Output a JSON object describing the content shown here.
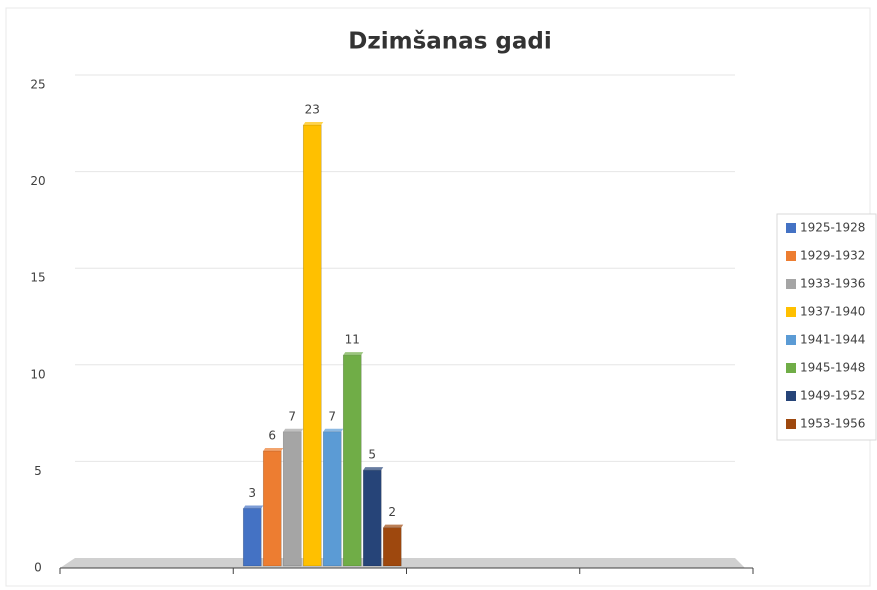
{
  "chart_data": {
    "type": "bar",
    "title": "Dzimšanas gadi",
    "categories": [
      null,
      null,
      null,
      null
    ],
    "series": [
      {
        "name": "1925-1928",
        "color": "#4472c4",
        "values": [
          null,
          3,
          null,
          null
        ]
      },
      {
        "name": "1929-1932",
        "color": "#ed7d31",
        "values": [
          null,
          6,
          null,
          null
        ]
      },
      {
        "name": "1933-1936",
        "color": "#a5a5a5",
        "values": [
          null,
          7,
          null,
          null
        ]
      },
      {
        "name": "1937-1940",
        "color": "#ffc000",
        "values": [
          null,
          23,
          null,
          null
        ]
      },
      {
        "name": "1941-1944",
        "color": "#5b9bd5",
        "values": [
          null,
          7,
          null,
          null
        ]
      },
      {
        "name": "1945-1948",
        "color": "#70ad47",
        "values": [
          null,
          11,
          null,
          null
        ]
      },
      {
        "name": "1949-1952",
        "color": "#264478",
        "values": [
          null,
          5,
          null,
          null
        ]
      },
      {
        "name": "1953-1956",
        "color": "#9e480e",
        "values": [
          null,
          2,
          null,
          null
        ]
      }
    ],
    "ylim": [
      0,
      25
    ],
    "yticks": [
      0,
      5,
      10,
      15,
      20,
      25
    ],
    "grid": true,
    "legend": "right"
  }
}
